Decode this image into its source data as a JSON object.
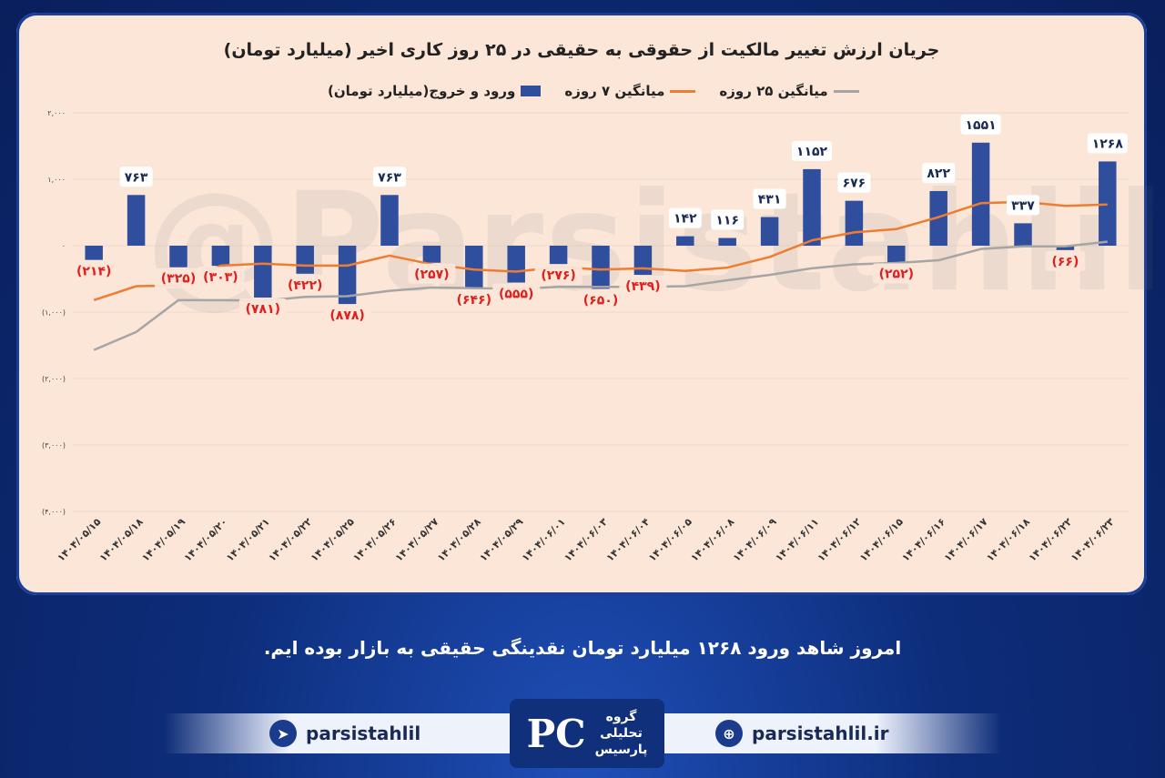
{
  "chart_data": {
    "type": "bar",
    "title": "جریان ارزش تغییر مالکیت از حقوقی به حقیقی در ۲۵ روز کاری اخیر (میلیارد تومان)",
    "ylim": [
      -4000,
      2000
    ],
    "yticks": [
      2000,
      1000,
      0,
      -1000,
      -2000,
      -3000,
      -4000
    ],
    "ytick_labels": [
      "۲,۰۰۰",
      "۱,۰۰۰",
      "۰",
      "(۱,۰۰۰)",
      "(۲,۰۰۰)",
      "(۳,۰۰۰)",
      "(۴,۰۰۰)"
    ],
    "categories": [
      "۱۴۰۴/۰۵/۱۵",
      "۱۴۰۴/۰۵/۱۸",
      "۱۴۰۴/۰۵/۱۹",
      "۱۴۰۴/۰۵/۲۰",
      "۱۴۰۴/۰۵/۲۱",
      "۱۴۰۴/۰۵/۲۲",
      "۱۴۰۴/۰۵/۲۵",
      "۱۴۰۴/۰۵/۲۶",
      "۱۴۰۴/۰۵/۲۷",
      "۱۴۰۴/۰۵/۲۸",
      "۱۴۰۴/۰۵/۲۹",
      "۱۴۰۴/۰۶/۰۱",
      "۱۴۰۴/۰۶/۰۳",
      "۱۴۰۴/۰۶/۰۴",
      "۱۴۰۴/۰۶/۰۵",
      "۱۴۰۴/۰۶/۰۸",
      "۱۴۰۴/۰۶/۰۹",
      "۱۴۰۴/۰۶/۱۱",
      "۱۴۰۴/۰۶/۱۲",
      "۱۴۰۴/۰۶/۱۵",
      "۱۴۰۴/۰۶/۱۶",
      "۱۴۰۴/۰۶/۱۷",
      "۱۴۰۴/۰۶/۱۸",
      "۱۴۰۴/۰۶/۲۲",
      "۱۴۰۴/۰۶/۲۳"
    ],
    "series": [
      {
        "name": "ورود و خروج(میلیارد تومان)",
        "kind": "bar",
        "color": "#2f4f9e",
        "values": [
          -214,
          763,
          -325,
          -303,
          -781,
          -422,
          -878,
          763,
          -257,
          -646,
          -555,
          -276,
          -650,
          -439,
          142,
          116,
          431,
          1152,
          676,
          -252,
          822,
          1551,
          337,
          -66,
          1268
        ],
        "labels": [
          "(۲۱۴)",
          "۷۶۳",
          "(۳۲۵)",
          "(۳۰۳)",
          "(۷۸۱)",
          "(۴۲۲)",
          "(۸۷۸)",
          "۷۶۳",
          "(۲۵۷)",
          "(۶۴۶)",
          "(۵۵۵)",
          "(۲۷۶)",
          "(۶۵۰)",
          "(۴۳۹)",
          "۱۴۲",
          "۱۱۶",
          "۴۳۱",
          "۱۱۵۲",
          "۶۷۶",
          "(۲۵۲)",
          "۸۲۲",
          "۱۵۵۱",
          "۳۳۷",
          "(۶۶)",
          "۱۲۶۸"
        ]
      },
      {
        "name": "میانگین ۷ روزه",
        "kind": "line",
        "color": "#ee7d31",
        "values": [
          -820,
          -610,
          -600,
          -300,
          -270,
          -300,
          -300,
          -150,
          -280,
          -360,
          -390,
          -320,
          -360,
          -340,
          -380,
          -330,
          -170,
          80,
          200,
          250,
          430,
          640,
          660,
          600,
          620
        ]
      },
      {
        "name": "میانگین ۲۵ روزه",
        "kind": "line",
        "color": "#a5a5a5",
        "values": [
          -1570,
          -1300,
          -820,
          -820,
          -830,
          -770,
          -760,
          -680,
          -630,
          -640,
          -650,
          -620,
          -620,
          -620,
          -610,
          -520,
          -440,
          -340,
          -280,
          -260,
          -220,
          -50,
          -10,
          -10,
          60
        ]
      }
    ]
  },
  "watermark": "@Parsistahlil",
  "caption": "امروز شاهد ورود ۱۲۶۸ میلیارد تومان نقدینگی حقیقی به بازار بوده ایم.",
  "footer": {
    "telegram_handle": "parsistahlil",
    "website": "parsistahlil.ir",
    "logo_letter": "PC",
    "logo_text": [
      "گروه",
      "تحلیلی",
      "پارسیس"
    ]
  },
  "colors": {
    "bar": "#2f4f9e",
    "ma7": "#ee7d31",
    "ma25": "#a5a5a5",
    "neg_label": "#e0201f",
    "panel": "#fbe6d8"
  }
}
